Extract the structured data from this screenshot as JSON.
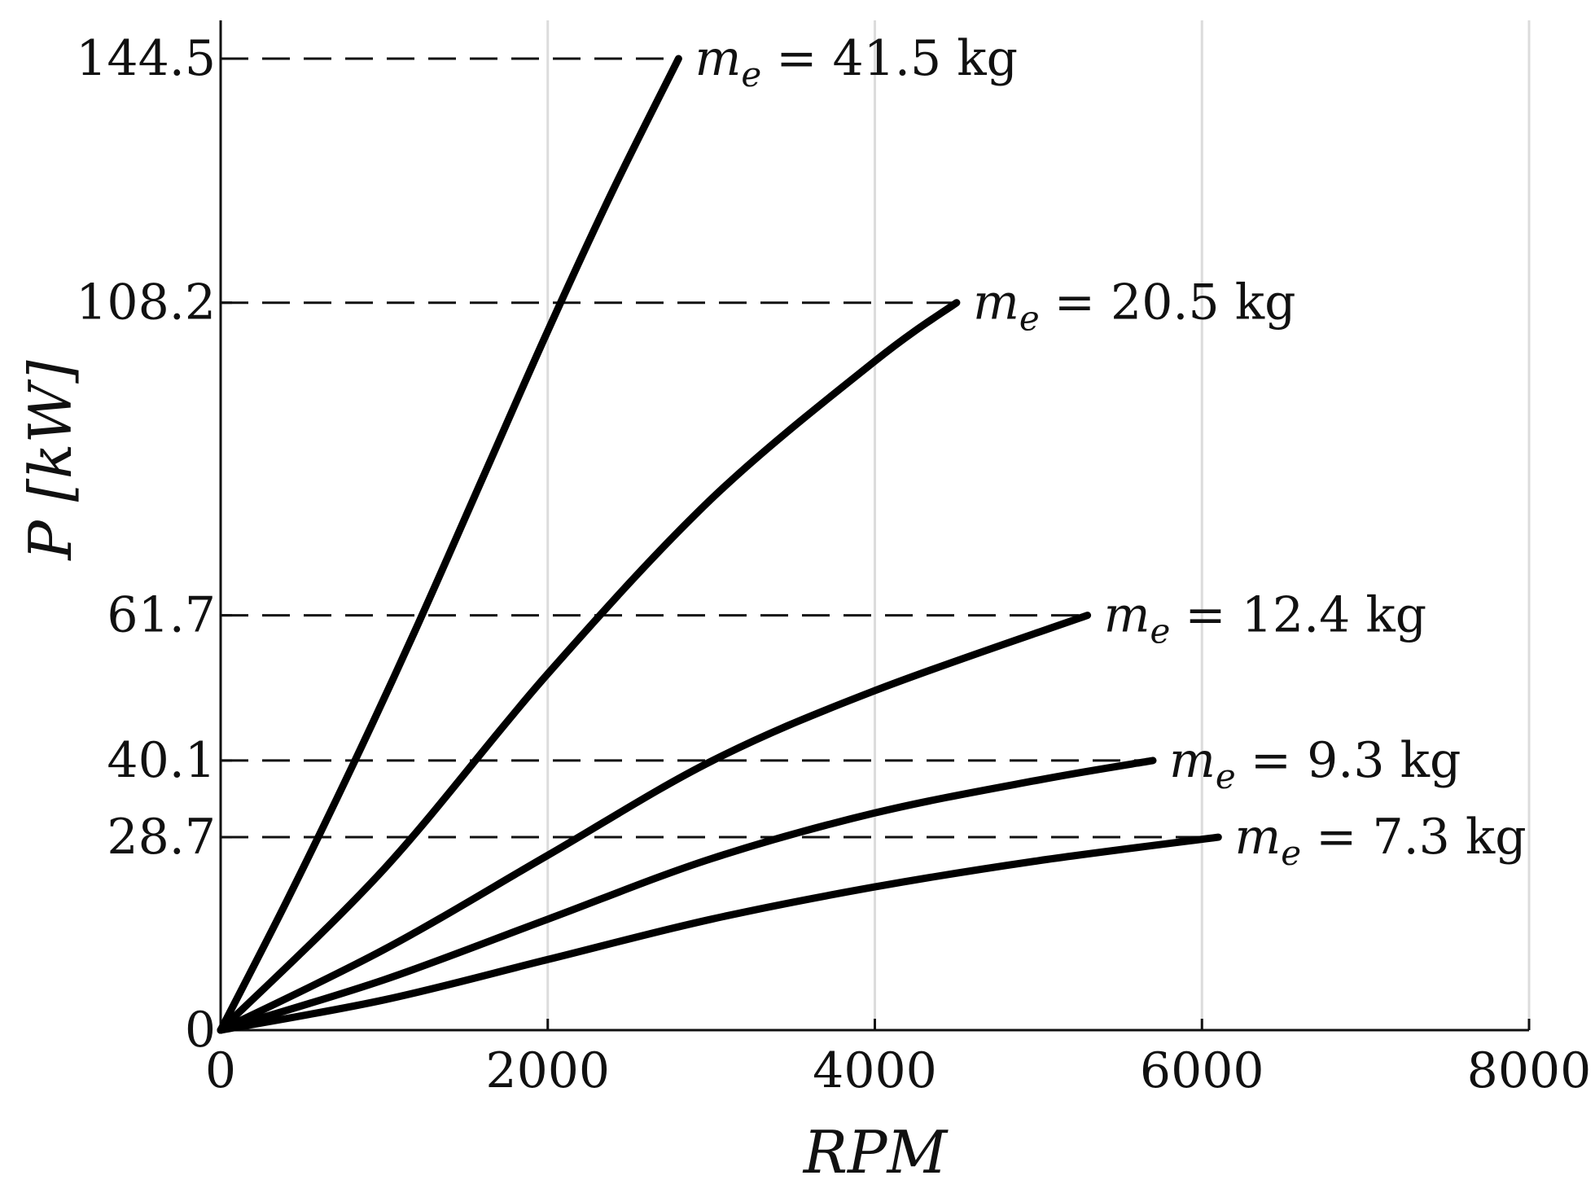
{
  "chart_data": {
    "type": "line",
    "xlabel": "RPM",
    "ylabel": "P [kW]",
    "xlim": [
      0,
      8000
    ],
    "ylim": [
      0,
      144.5
    ],
    "x_ticks": [
      0,
      2000,
      4000,
      6000,
      8000
    ],
    "y_ticks": [
      0,
      28.7,
      40.1,
      61.7,
      108.2,
      144.5
    ],
    "y_tick_labels": [
      "0",
      "28.7",
      "40.1",
      "61.7",
      "108.2",
      "144.5"
    ],
    "vertical_grid": true,
    "reference_lines": "dashed horizontal lines at each curve's maximum power",
    "series": [
      {
        "name": "me = 41.5 kg",
        "label_var": "m",
        "label_sub": "e",
        "label_rest": "= 41.5 kg",
        "x": [
          0,
          400,
          800,
          1200,
          1600,
          2000,
          2400,
          2800
        ],
        "y": [
          0,
          19,
          39,
          60,
          82,
          104,
          125,
          144.5
        ]
      },
      {
        "name": "me = 20.5 kg",
        "label_var": "m",
        "label_sub": "e",
        "label_rest": "= 20.5 kg",
        "x": [
          0,
          1000,
          2000,
          3000,
          4000,
          4500
        ],
        "y": [
          0,
          24,
          53,
          79,
          99.5,
          108.2
        ]
      },
      {
        "name": "me = 12.4 kg",
        "label_var": "m",
        "label_sub": "e",
        "label_rest": "= 12.4 kg",
        "x": [
          0,
          1000,
          2000,
          3000,
          4000,
          5300
        ],
        "y": [
          0,
          12,
          26,
          40,
          50.5,
          61.7
        ]
      },
      {
        "name": "me = 9.3 kg",
        "label_var": "m",
        "label_sub": "e",
        "label_rest": "= 9.3 kg",
        "x": [
          0,
          1000,
          2000,
          3000,
          4000,
          5000,
          5700
        ],
        "y": [
          0,
          7.5,
          16.5,
          25.5,
          32.3,
          37.2,
          40.1
        ]
      },
      {
        "name": "me = 7.3 kg",
        "label_var": "m",
        "label_sub": "e",
        "label_rest": "= 7.3 kg",
        "x": [
          0,
          1000,
          2000,
          3000,
          4000,
          5000,
          6100
        ],
        "y": [
          0,
          4.5,
          10.5,
          16.5,
          21.3,
          25.2,
          28.7
        ]
      }
    ]
  }
}
